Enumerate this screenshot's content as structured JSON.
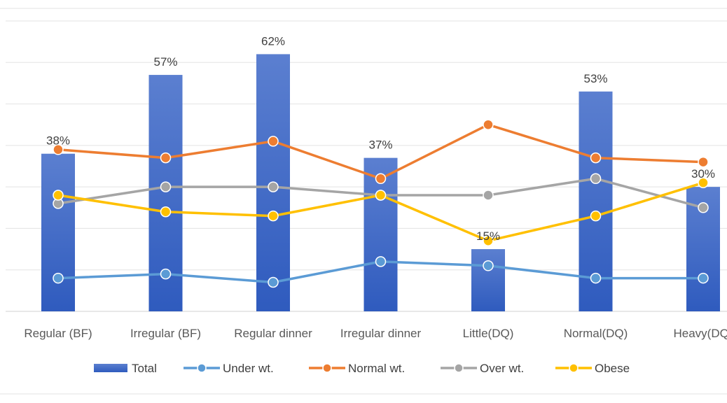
{
  "chart_data": {
    "type": "bar",
    "categories": [
      "Regular (BF)",
      "Irregular (BF)",
      "Regular dinner",
      "Irregular dinner",
      "Little(DQ)",
      "Normal(DQ)",
      "Heavy(DQ)"
    ],
    "ylim": [
      0,
      70
    ],
    "grid": true,
    "legend_position": "bottom",
    "series": [
      {
        "name": "Total",
        "type": "bar",
        "color": "#4472C4",
        "values": [
          38,
          57,
          62,
          37,
          15,
          53,
          30
        ],
        "data_labels": [
          "38%",
          "57%",
          "62%",
          "37%",
          "15%",
          "53%",
          "30%"
        ]
      },
      {
        "name": "Under wt.",
        "type": "line",
        "color": "#5B9BD5",
        "values": [
          8,
          9,
          7,
          12,
          11,
          8,
          8
        ]
      },
      {
        "name": "Normal wt.",
        "type": "line",
        "color": "#ED7D31",
        "values": [
          39,
          37,
          41,
          32,
          45,
          37,
          36
        ]
      },
      {
        "name": "Over wt.",
        "type": "line",
        "color": "#A5A5A5",
        "values": [
          26,
          30,
          30,
          28,
          28,
          32,
          25
        ]
      },
      {
        "name": "Obese",
        "type": "line",
        "color": "#FFC000",
        "values": [
          28,
          24,
          23,
          28,
          17,
          23,
          31
        ]
      }
    ]
  }
}
